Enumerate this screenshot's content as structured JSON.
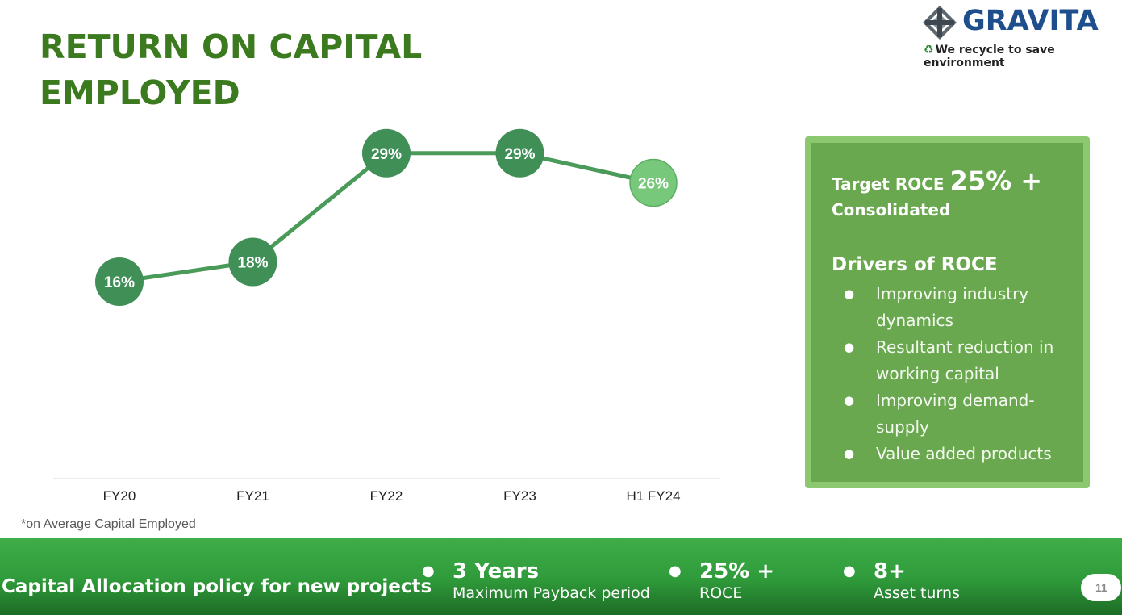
{
  "title": {
    "line1": "RETURN ON CAPITAL",
    "line2": "EMPLOYED"
  },
  "logo": {
    "name": "GRAVITA",
    "tagline": "We recycle to save environment",
    "tag_icon": "recycle-icon"
  },
  "colors": {
    "title_green": "#3c7a1f",
    "line_green": "#4a9a5a",
    "marker_dark": "#3f8f57",
    "marker_light": "#78c87b",
    "box_green": "#6aa84f",
    "banner_green": "#2f9a3a"
  },
  "chart_data": {
    "type": "line",
    "categories": [
      "FY20",
      "FY21",
      "FY22",
      "FY23",
      "H1 FY24"
    ],
    "values": [
      16,
      18,
      29,
      29,
      26
    ],
    "data_labels": [
      "16%",
      "18%",
      "29%",
      "29%",
      "26%"
    ],
    "unit": "%",
    "ylim": [
      0,
      40
    ],
    "grid": false,
    "highlight_last": true
  },
  "footnote": "*on Average Capital Employed",
  "sidebox": {
    "target_label": "Target ROCE",
    "target_value": "25% +",
    "target_sub": "Consolidated",
    "drivers_title": "Drivers of ROCE",
    "drivers": [
      "Improving industry dynamics",
      "Resultant reduction in working capital",
      "Improving demand-supply",
      "Value added products"
    ]
  },
  "banner": {
    "title": "Capital Allocation policy for new projects",
    "items": [
      {
        "head": "3 Years",
        "sub": "Maximum Payback period"
      },
      {
        "head": "25% +",
        "sub": "ROCE"
      },
      {
        "head": "8+",
        "sub": "Asset turns"
      }
    ],
    "page_number": "11"
  }
}
